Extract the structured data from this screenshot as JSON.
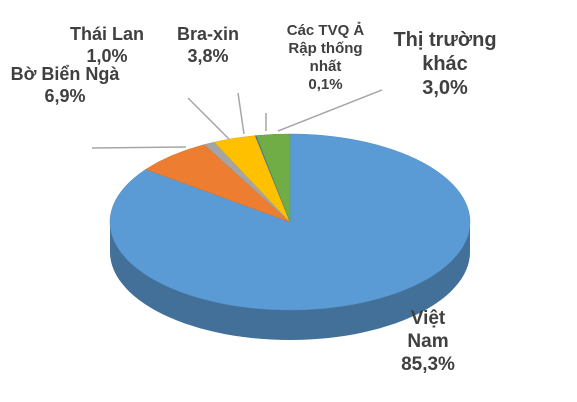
{
  "chart_data": {
    "type": "pie",
    "categories": [
      "Việt Nam",
      "Bờ Biển Ngà",
      "Thái Lan",
      "Bra-xin",
      "Các TVQ Ả Rập thống nhất",
      "Thị trường khác"
    ],
    "values": [
      85.3,
      6.9,
      1.0,
      3.8,
      0.1,
      3.0
    ],
    "value_labels": [
      "85,3%",
      "6,9%",
      "1,0%",
      "3,8%",
      "0,1%",
      "3,0%"
    ],
    "colors": [
      "#5b9bd5",
      "#ed7d31",
      "#a5a5a5",
      "#ffc000",
      "#4472c4",
      "#70ad47"
    ]
  }
}
